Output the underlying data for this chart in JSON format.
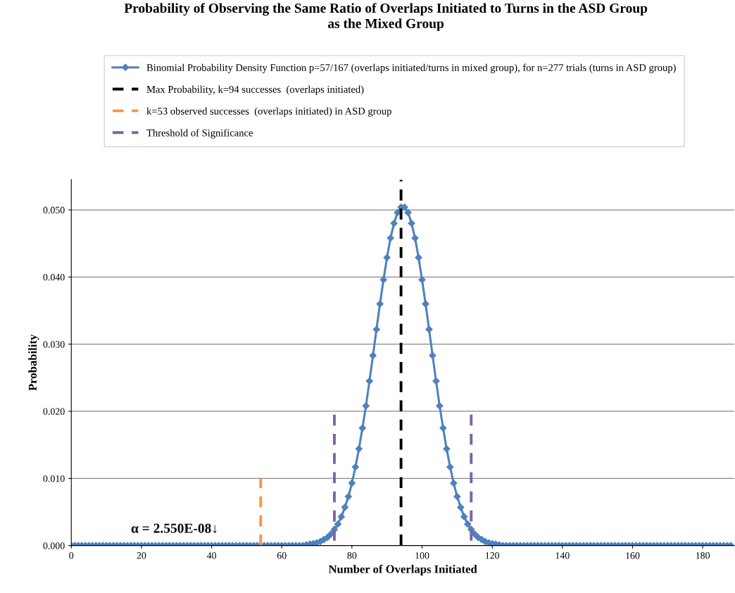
{
  "chart_data": {
    "type": "line",
    "title": "Probability of Observing the Same Ratio of Overlaps Initiated to Turns in the ASD Group\nas the Mixed Group",
    "xlabel": "Number of Overlaps Initiated",
    "ylabel": "Probability",
    "xlim": [
      0,
      189
    ],
    "xticks": [
      0,
      20,
      40,
      60,
      80,
      100,
      120,
      140,
      160,
      180
    ],
    "ylim": [
      0,
      0.0545
    ],
    "yticks": [
      {
        "value": 0,
        "label": "0.000"
      },
      {
        "value": 0.01,
        "label": "0.010"
      },
      {
        "value": 0.02,
        "label": "0.020"
      },
      {
        "value": 0.03,
        "label": "0.030"
      },
      {
        "value": 0.04,
        "label": "0.040"
      },
      {
        "value": 0.05,
        "label": "0.050"
      }
    ],
    "grid": "y",
    "legend": "top",
    "annotations": [
      "α = 2.550E-08↓"
    ],
    "series": [
      {
        "name": "Binomial Probability Density Function p=57/167 (overlaps initiated/turns in mixed group), for n=277 trials (turns in ASD group)",
        "color": "#4f81bd",
        "marker": "diamond",
        "line_style": "solid",
        "x": [
          0,
          1,
          2,
          3,
          4,
          5,
          6,
          7,
          8,
          9,
          10,
          11,
          12,
          13,
          14,
          15,
          16,
          17,
          18,
          19,
          20,
          21,
          22,
          23,
          24,
          25,
          26,
          27,
          28,
          29,
          30,
          31,
          32,
          33,
          34,
          35,
          36,
          37,
          38,
          39,
          40,
          41,
          42,
          43,
          44,
          45,
          46,
          47,
          48,
          49,
          50,
          51,
          52,
          53,
          54,
          55,
          56,
          57,
          58,
          59,
          60,
          61,
          62,
          63,
          64,
          65,
          66,
          67,
          68,
          69,
          70,
          71,
          72,
          73,
          74,
          75,
          76,
          77,
          78,
          79,
          80,
          81,
          82,
          83,
          84,
          85,
          86,
          87,
          88,
          89,
          90,
          91,
          92,
          93,
          94,
          95,
          96,
          97,
          98,
          99,
          100,
          101,
          102,
          103,
          104,
          105,
          106,
          107,
          108,
          109,
          110,
          111,
          112,
          113,
          114,
          115,
          116,
          117,
          118,
          119,
          120,
          121,
          122,
          123,
          124,
          125,
          126,
          127,
          128,
          129,
          130,
          131,
          132,
          133,
          134,
          135,
          136,
          137,
          138,
          139,
          140,
          141,
          142,
          143,
          144,
          145,
          146,
          147,
          148,
          149,
          150,
          151,
          152,
          153,
          154,
          155,
          156,
          157,
          158,
          159,
          160,
          161,
          162,
          163,
          164,
          165,
          166,
          167,
          168,
          169,
          170,
          171,
          172,
          173,
          174,
          175,
          176,
          177,
          178,
          179,
          180,
          181,
          182,
          183,
          184,
          185,
          186,
          187,
          188
        ],
        "values": [
          0,
          0,
          0,
          0,
          0,
          0,
          0,
          0,
          0,
          0,
          0,
          0,
          0,
          0,
          0,
          0,
          0,
          0,
          0,
          0,
          0,
          0,
          0,
          0,
          0,
          0,
          0,
          0,
          0,
          0,
          0,
          0,
          0,
          0,
          0,
          0,
          0,
          0,
          0,
          0,
          0,
          0,
          0,
          0,
          0,
          0,
          0,
          0,
          0,
          0,
          0,
          0,
          0,
          0,
          0,
          0,
          0,
          0,
          0,
          0,
          0,
          0,
          0,
          0,
          0,
          0,
          0,
          0.0001,
          0.0002,
          0.0003,
          0.0004,
          0.0006,
          0.0009,
          0.0012,
          0.0017,
          0.0024,
          0.0032,
          0.0043,
          0.0057,
          0.0073,
          0.0093,
          0.0117,
          0.0144,
          0.0175,
          0.0208,
          0.0245,
          0.0283,
          0.0322,
          0.036,
          0.0396,
          0.0429,
          0.0458,
          0.048,
          0.0496,
          0.0504,
          0.0504,
          0.0496,
          0.048,
          0.0458,
          0.0429,
          0.0396,
          0.036,
          0.0322,
          0.0283,
          0.0245,
          0.0208,
          0.0175,
          0.0144,
          0.0117,
          0.0093,
          0.0073,
          0.0057,
          0.0043,
          0.0032,
          0.0024,
          0.0017,
          0.0012,
          0.0009,
          0.0006,
          0.0004,
          0.0003,
          0.0002,
          0.0001,
          0,
          0,
          0,
          0,
          0,
          0,
          0,
          0,
          0,
          0,
          0,
          0,
          0,
          0,
          0,
          0,
          0,
          0,
          0,
          0,
          0,
          0,
          0,
          0,
          0,
          0,
          0,
          0,
          0,
          0,
          0,
          0,
          0,
          0,
          0,
          0,
          0,
          0,
          0,
          0,
          0,
          0,
          0,
          0,
          0,
          0,
          0,
          0,
          0,
          0,
          0,
          0,
          0,
          0,
          0,
          0,
          0,
          0,
          0,
          0,
          0,
          0,
          0,
          0,
          0,
          0
        ]
      },
      {
        "name": "Max Probability, k=94 successes  (overlaps initiated)",
        "color": "#000000",
        "marker": "none",
        "line_style": "dashed",
        "x": [
          94,
          94
        ],
        "values": [
          0,
          0.0545
        ]
      },
      {
        "name": "k=53 observed successes  (overlaps initiated) in ASD group",
        "color": "#f79646",
        "marker": "none",
        "line_style": "dashed",
        "x": [
          54,
          54
        ],
        "values": [
          0,
          0.0101
        ]
      },
      {
        "name": "Threshold of Significance",
        "color": "#8064a2",
        "marker": "none",
        "line_style": "dashed",
        "x": [
          75,
          75
        ],
        "values": [
          0.0195,
          0
        ]
      },
      {
        "color": "#8064a2",
        "marker": "none",
        "line_style": "dashed",
        "x": [
          114,
          114
        ],
        "values": [
          0.0195,
          0
        ]
      }
    ]
  }
}
